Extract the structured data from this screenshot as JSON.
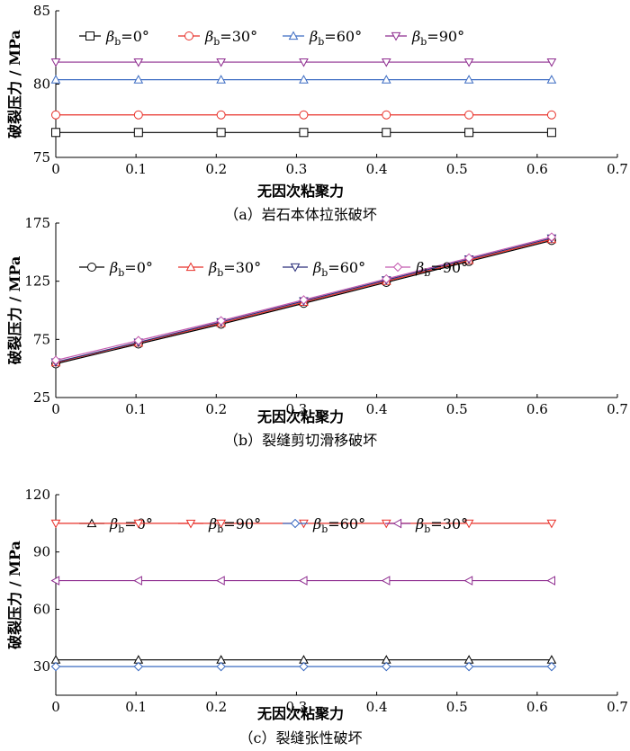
{
  "chart_data": [
    {
      "type": "line",
      "caption": "（a）岩石本体拉张破坏",
      "xlabel": "无因次粘聚力",
      "ylabel": "破裂压力 / MPa",
      "xlim": [
        0,
        0.7
      ],
      "ylim": [
        75,
        85
      ],
      "xticks": [
        "0",
        "0.1",
        "0.2",
        "0.3",
        "0.4",
        "0.5",
        "0.6",
        "0.7"
      ],
      "yticks": [
        "75",
        "80",
        "85"
      ],
      "x": [
        0,
        0.103,
        0.206,
        0.309,
        0.412,
        0.515,
        0.618
      ],
      "legend_position": "top",
      "series": [
        {
          "name": "βb=0°",
          "name_sym": "β",
          "name_sub": "b",
          "name_rest": "=0°",
          "marker": "square",
          "color": "#000000",
          "values": [
            76.7,
            76.7,
            76.7,
            76.7,
            76.7,
            76.7,
            76.7
          ]
        },
        {
          "name": "βb=30°",
          "name_sym": "β",
          "name_sub": "b",
          "name_rest": "=30°",
          "marker": "circle",
          "color": "#e8312a",
          "values": [
            77.9,
            77.9,
            77.9,
            77.9,
            77.9,
            77.9,
            77.9
          ]
        },
        {
          "name": "βb=60°",
          "name_sym": "β",
          "name_sub": "b",
          "name_rest": "=60°",
          "marker": "triangle-up",
          "color": "#3b6bc2",
          "values": [
            80.3,
            80.3,
            80.3,
            80.3,
            80.3,
            80.3,
            80.3
          ]
        },
        {
          "name": "βb=90°",
          "name_sym": "β",
          "name_sub": "b",
          "name_rest": "=90°",
          "marker": "triangle-down",
          "color": "#8e2c8f",
          "values": [
            81.5,
            81.5,
            81.5,
            81.5,
            81.5,
            81.5,
            81.5
          ]
        }
      ]
    },
    {
      "type": "line",
      "caption": "（b）裂缝剪切滑移破坏",
      "xlabel": "无因次粘聚力",
      "ylabel": "破裂压力 / MPa",
      "xlim": [
        0,
        0.7
      ],
      "ylim": [
        25,
        175
      ],
      "xticks": [
        "0",
        "0.1",
        "0.2",
        "0.3",
        "0.4",
        "0.5",
        "0.6",
        "0.7"
      ],
      "yticks": [
        "25",
        "75",
        "125",
        "175"
      ],
      "x": [
        0,
        0.103,
        0.206,
        0.309,
        0.412,
        0.515,
        0.618
      ],
      "legend_position": "top",
      "series": [
        {
          "name": "βb=0°",
          "name_sym": "β",
          "name_sub": "b",
          "name_rest": "=0°",
          "marker": "circle",
          "color": "#000000",
          "values": [
            54,
            71,
            88,
            106,
            124,
            142,
            160
          ]
        },
        {
          "name": "βb=30°",
          "name_sym": "β",
          "name_sub": "b",
          "name_rest": "=30°",
          "marker": "triangle-up",
          "color": "#e8312a",
          "values": [
            55,
            72,
            89,
            107,
            125,
            143,
            161
          ]
        },
        {
          "name": "βb=60°",
          "name_sym": "β",
          "name_sub": "b",
          "name_rest": "=60°",
          "marker": "triangle-down",
          "color": "#2a2f7a",
          "values": [
            55.5,
            72.5,
            90,
            108,
            126,
            144,
            162
          ]
        },
        {
          "name": "βb=90°",
          "name_sym": "β",
          "name_sub": "b",
          "name_rest": "=90°",
          "marker": "diamond",
          "color": "#c45bb0",
          "values": [
            57,
            74,
            91,
            109,
            127,
            145,
            163
          ]
        }
      ]
    },
    {
      "type": "line",
      "caption": "（c）裂缝张性破坏",
      "xlabel": "无因次粘聚力",
      "ylabel": "破裂压力 / MPa",
      "xlim": [
        0,
        0.7
      ],
      "ylim": [
        15,
        120
      ],
      "xticks": [
        "0",
        "0.1",
        "0.2",
        "0.3",
        "0.4",
        "0.5",
        "0.6",
        "0.7"
      ],
      "yticks": [
        "30",
        "60",
        "90",
        "120"
      ],
      "x": [
        0,
        0.103,
        0.206,
        0.309,
        0.412,
        0.515,
        0.618
      ],
      "legend_position": "top",
      "series": [
        {
          "name": "βb=0°",
          "name_sym": "β",
          "name_sub": "b",
          "name_rest": "=0°",
          "marker": "triangle-up",
          "color": "#000000",
          "values": [
            33.5,
            33.5,
            33.5,
            33.5,
            33.5,
            33.5,
            33.5
          ]
        },
        {
          "name": "βb=90°",
          "name_sym": "β",
          "name_sub": "b",
          "name_rest": "=90°",
          "marker": "triangle-down",
          "color": "#e8312a",
          "values": [
            105,
            105,
            105,
            105,
            105,
            105,
            105
          ]
        },
        {
          "name": "βb=60°",
          "name_sym": "β",
          "name_sub": "b",
          "name_rest": "=60°",
          "marker": "diamond",
          "color": "#3b6bc2",
          "values": [
            30,
            30,
            30,
            30,
            30,
            30,
            30
          ]
        },
        {
          "name": "βb=30°",
          "name_sym": "β",
          "name_sub": "b",
          "name_rest": "=30°",
          "marker": "triangle-left",
          "color": "#8e2c8f",
          "values": [
            75,
            75,
            75,
            75,
            75,
            75,
            75
          ]
        }
      ]
    }
  ]
}
